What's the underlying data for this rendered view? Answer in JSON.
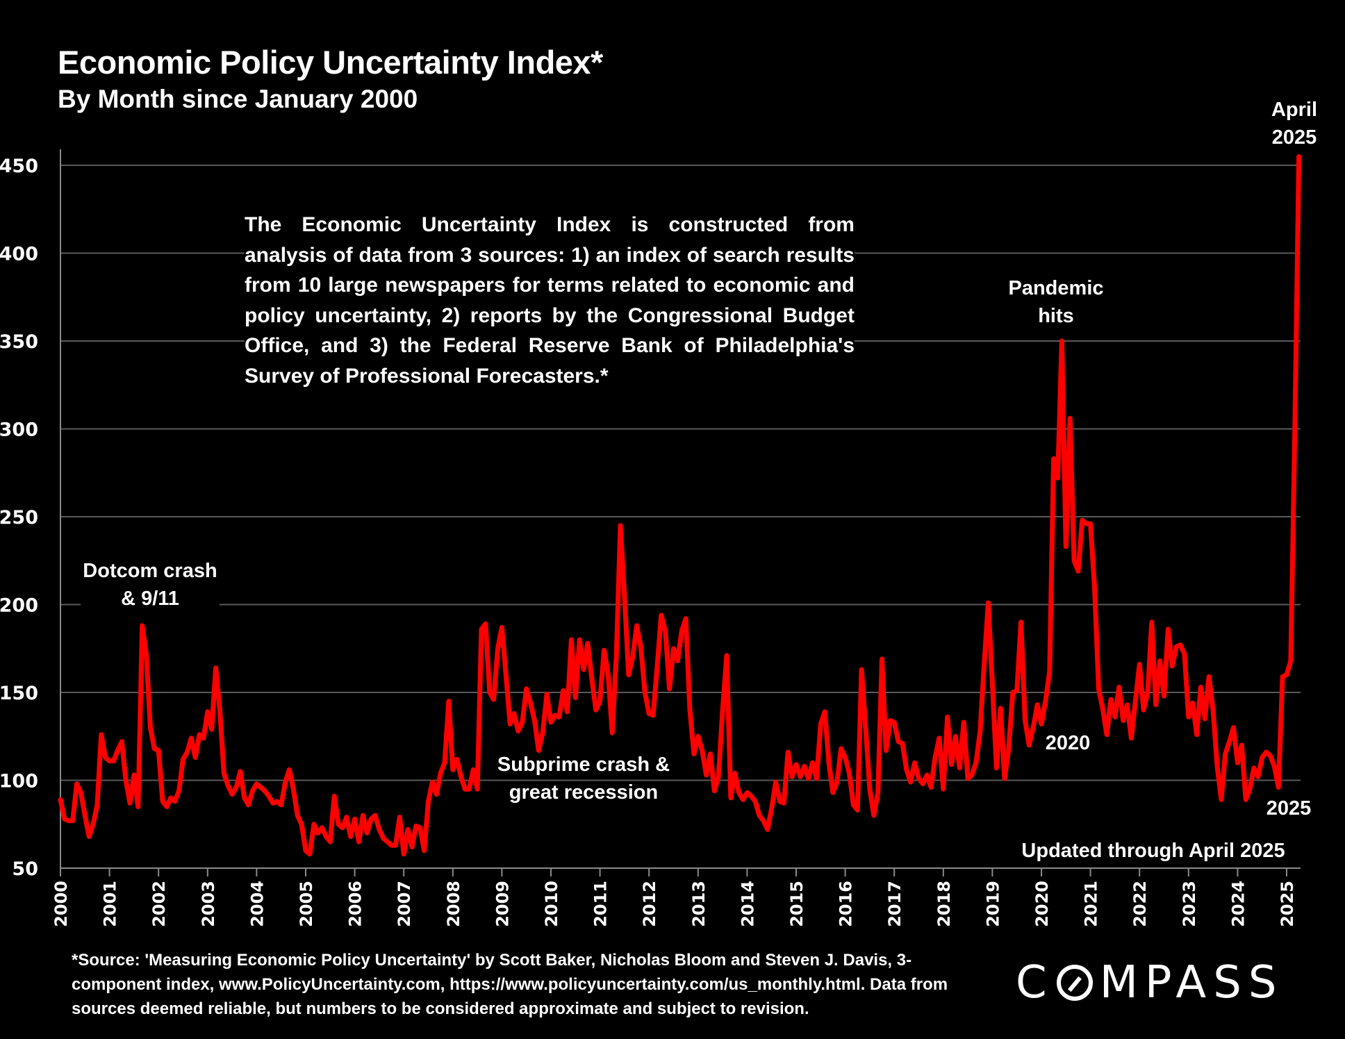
{
  "header": {
    "title": "Economic Policy Uncertainty Index*",
    "subtitle": "By Month since January 2000"
  },
  "description": "The Economic Uncertainty Index is constructed from analysis of data from 3 sources:  1) an index of search results from 10 large newspapers for terms related to economic and policy uncertainty, 2) reports by the Congressional Budget Office, and 3) the Federal Reserve Bank of Philadelphia's Survey of Professional Forecasters.*",
  "annotations": {
    "dotcom": "Dotcom crash & 9/11",
    "subprime": "Subprime crash & great recession",
    "pandemic": "Pandemic hits",
    "label_2020": "2020",
    "label_2025": "2025",
    "april_2025": "April 2025",
    "updated": "Updated through April 2025"
  },
  "footnote": "*Source: 'Measuring Economic Policy Uncertainty' by Scott Baker, Nicholas Bloom and Steven J. Davis, 3-component  index,  www.PolicyUncertainty.com,  https://www.policyuncertainty.com/us_monthly.html. Data from sources deemed reliable, but numbers to be considered approximate and subject to revision.",
  "brand": {
    "name": "COMPASS"
  },
  "colors": {
    "line": "#ff0000",
    "background": "#000000",
    "grid": "#5a5a5a",
    "text": "#ffffff"
  },
  "chart_data": {
    "type": "line",
    "title": "Economic Policy Uncertainty Index*",
    "subtitle": "By Month since January 2000",
    "xlabel": "",
    "ylabel": "",
    "ylim": [
      50,
      450
    ],
    "yticks": [
      50,
      100,
      150,
      200,
      250,
      300,
      350,
      400,
      450
    ],
    "xticks": [
      "2000",
      "2001",
      "2002",
      "2003",
      "2004",
      "2005",
      "2006",
      "2007",
      "2008",
      "2009",
      "2010",
      "2011",
      "2012",
      "2013",
      "2014",
      "2015",
      "2016",
      "2017",
      "2018",
      "2019",
      "2020",
      "2021",
      "2022",
      "2023",
      "2024",
      "2025"
    ],
    "grid": true,
    "legend": "none",
    "start": "2000-01",
    "frequency": "monthly",
    "end": "2025-04",
    "series": [
      {
        "name": "Economic Policy Uncertainty Index",
        "values": [
          89,
          78,
          77,
          77,
          98,
          93,
          80,
          68,
          75,
          86,
          126,
          113,
          111,
          111,
          117,
          122,
          100,
          87,
          103,
          85,
          188,
          172,
          130,
          118,
          117,
          88,
          85,
          90,
          88,
          94,
          112,
          116,
          124,
          113,
          126,
          124,
          139,
          129,
          164,
          140,
          104,
          97,
          92,
          96,
          105,
          90,
          86,
          94,
          98,
          96,
          94,
          91,
          87,
          88,
          86,
          99,
          106,
          95,
          80,
          75,
          60,
          58,
          75,
          70,
          73,
          68,
          65,
          91,
          75,
          73,
          79,
          68,
          78,
          65,
          80,
          70,
          78,
          80,
          72,
          67,
          65,
          63,
          63,
          79,
          58,
          72,
          62,
          74,
          73,
          60,
          88,
          99,
          92,
          104,
          110,
          145,
          106,
          112,
          102,
          95,
          95,
          106,
          95,
          186,
          189,
          150,
          146,
          175,
          187,
          160,
          132,
          138,
          128,
          133,
          152,
          144,
          134,
          117,
          127,
          149,
          133,
          137,
          136,
          151,
          139,
          180,
          147,
          180,
          163,
          178,
          158,
          140,
          145,
          174,
          160,
          127,
          170,
          245,
          205,
          160,
          170,
          188,
          176,
          150,
          138,
          137,
          165,
          194,
          185,
          152,
          175,
          168,
          185,
          192,
          140,
          115,
          125,
          117,
          103,
          115,
          94,
          102,
          140,
          171,
          90,
          104,
          93,
          89,
          93,
          91,
          88,
          80,
          77,
          72,
          84,
          99,
          88,
          87,
          116,
          102,
          109,
          102,
          108,
          101,
          110,
          101,
          132,
          139,
          110,
          93,
          99,
          118,
          113,
          104,
          86,
          83,
          163,
          130,
          95,
          80,
          93,
          169,
          117,
          134,
          133,
          122,
          121,
          106,
          99,
          110,
          101,
          98,
          103,
          96,
          113,
          124,
          95,
          136,
          109,
          125,
          107,
          133,
          101,
          103,
          110,
          128,
          166,
          201,
          155,
          107,
          141,
          101,
          118,
          150,
          151,
          190,
          134,
          120,
          130,
          143,
          132,
          145,
          162,
          283,
          272,
          350,
          233,
          306,
          225,
          219,
          248,
          246,
          246,
          210,
          152,
          141,
          126,
          146,
          136,
          153,
          134,
          143,
          124,
          145,
          166,
          140,
          150,
          190,
          143,
          168,
          148,
          186,
          165,
          176,
          177,
          172,
          136,
          144,
          126,
          153,
          135,
          159,
          140,
          108,
          89,
          115,
          122,
          130,
          110,
          120,
          89,
          95,
          107,
          102,
          113,
          116,
          114,
          108,
          96,
          159,
          160,
          168,
          300,
          455
        ]
      }
    ]
  }
}
